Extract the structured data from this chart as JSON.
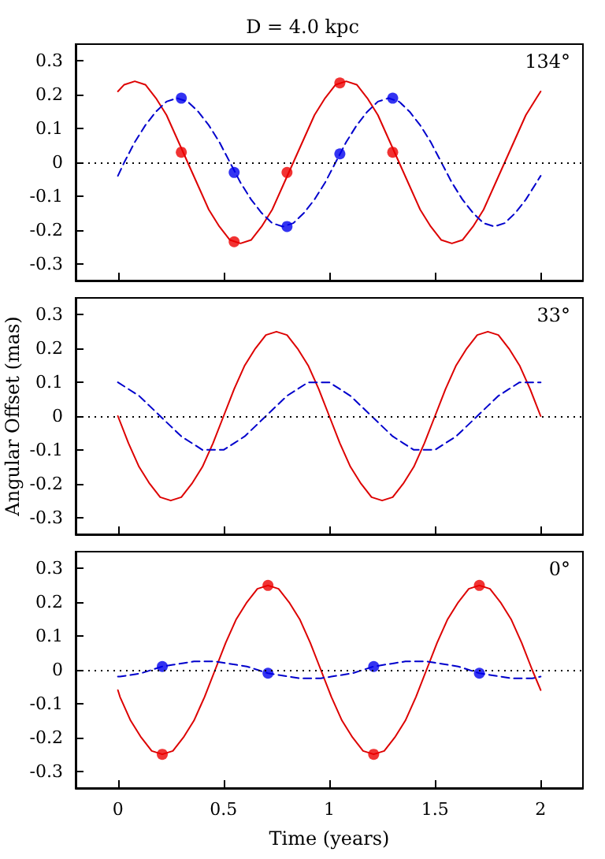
{
  "chart_data": [
    {
      "type": "line",
      "title": "D = 4.0 kpc",
      "annotations": [
        "134°"
      ],
      "xlim": [
        -0.2,
        2.2
      ],
      "xticks": [
        0,
        0.5,
        1,
        1.5,
        2
      ],
      "ylim": [
        -0.35,
        0.35
      ],
      "yticks": [
        -0.3,
        -0.2,
        -0.1,
        0,
        0.1,
        0.2,
        0.3
      ],
      "tick_labels": "y",
      "ref_lines": [
        {
          "axis": "y",
          "value": 0,
          "color": "#000000",
          "line_style": "dotted"
        }
      ],
      "series": [
        {
          "type": "line",
          "color": "#dd0000",
          "line_style": "solid",
          "marker": "none",
          "x": [
            0,
            0.03,
            0.08,
            0.13,
            0.18,
            0.23,
            0.28,
            0.33,
            0.38,
            0.43,
            0.48,
            0.53,
            0.58,
            0.63,
            0.68,
            0.73,
            0.78,
            0.83,
            0.88,
            0.93,
            0.98,
            1.03,
            1.08,
            1.13,
            1.18,
            1.23,
            1.28,
            1.33,
            1.38,
            1.43,
            1.48,
            1.53,
            1.58,
            1.63,
            1.68,
            1.73,
            1.78,
            1.83,
            1.88,
            1.93,
            1.98,
            2
          ],
          "values": [
            0.21,
            0.23,
            0.24,
            0.23,
            0.19,
            0.14,
            0.07,
            0,
            -0.07,
            -0.14,
            -0.19,
            -0.23,
            -0.24,
            -0.23,
            -0.19,
            -0.14,
            -0.07,
            0,
            0.07,
            0.14,
            0.19,
            0.23,
            0.24,
            0.23,
            0.19,
            0.14,
            0.07,
            0,
            -0.07,
            -0.14,
            -0.19,
            -0.23,
            -0.24,
            -0.23,
            -0.19,
            -0.14,
            -0.07,
            0,
            0.07,
            0.14,
            0.19,
            0.21
          ]
        },
        {
          "type": "line",
          "color": "#0000cc",
          "line_style": "dashed",
          "marker": "none",
          "x": [
            0,
            0.03,
            0.08,
            0.13,
            0.18,
            0.23,
            0.28,
            0.33,
            0.38,
            0.43,
            0.48,
            0.53,
            0.58,
            0.63,
            0.68,
            0.73,
            0.78,
            0.83,
            0.88,
            0.93,
            0.98,
            1.03,
            1.08,
            1.13,
            1.18,
            1.23,
            1.28,
            1.33,
            1.38,
            1.43,
            1.48,
            1.53,
            1.58,
            1.63,
            1.68,
            1.73,
            1.78,
            1.83,
            1.88,
            1.93,
            1.98,
            2
          ],
          "values": [
            -0.04,
            0,
            0.06,
            0.11,
            0.15,
            0.18,
            0.19,
            0.18,
            0.15,
            0.11,
            0.06,
            0,
            -0.06,
            -0.11,
            -0.15,
            -0.18,
            -0.19,
            -0.18,
            -0.15,
            -0.11,
            -0.06,
            0,
            0.06,
            0.11,
            0.15,
            0.18,
            0.19,
            0.18,
            0.15,
            0.11,
            0.06,
            0,
            -0.06,
            -0.11,
            -0.15,
            -0.18,
            -0.19,
            -0.18,
            -0.15,
            -0.11,
            -0.06,
            -0.04
          ]
        },
        {
          "type": "scatter",
          "color": "#ee0000",
          "marker": "circle",
          "x": [
            0.3,
            0.55,
            0.8,
            1.05,
            1.3
          ],
          "values": [
            0.03,
            -0.235,
            -0.03,
            0.235,
            0.03
          ]
        },
        {
          "type": "scatter",
          "color": "#0000ee",
          "marker": "circle",
          "x": [
            0.3,
            0.55,
            0.8,
            1.05,
            1.3
          ],
          "values": [
            0.19,
            -0.03,
            -0.19,
            0.025,
            0.19
          ]
        }
      ]
    },
    {
      "type": "line",
      "ylabel": "Angular Offset (mas)",
      "annotations": [
        "33°"
      ],
      "xlim": [
        -0.2,
        2.2
      ],
      "xticks": [
        0,
        0.5,
        1,
        1.5,
        2
      ],
      "ylim": [
        -0.35,
        0.35
      ],
      "yticks": [
        -0.3,
        -0.2,
        -0.1,
        0,
        0.1,
        0.2,
        0.3
      ],
      "tick_labels": "y",
      "ref_lines": [
        {
          "axis": "y",
          "value": 0,
          "color": "#000000",
          "line_style": "dotted"
        }
      ],
      "series": [
        {
          "type": "line",
          "color": "#dd0000",
          "line_style": "solid",
          "marker": "none",
          "x": [
            0,
            0.05,
            0.1,
            0.15,
            0.2,
            0.25,
            0.3,
            0.35,
            0.4,
            0.45,
            0.5,
            0.55,
            0.6,
            0.65,
            0.7,
            0.75,
            0.8,
            0.85,
            0.9,
            0.95,
            1,
            1.05,
            1.1,
            1.15,
            1.2,
            1.25,
            1.3,
            1.35,
            1.4,
            1.45,
            1.5,
            1.55,
            1.6,
            1.65,
            1.7,
            1.75,
            1.8,
            1.85,
            1.9,
            1.95,
            2
          ],
          "values": [
            0,
            -0.08,
            -0.15,
            -0.2,
            -0.24,
            -0.25,
            -0.24,
            -0.2,
            -0.15,
            -0.08,
            0,
            0.08,
            0.15,
            0.2,
            0.24,
            0.25,
            0.24,
            0.2,
            0.15,
            0.08,
            0,
            -0.08,
            -0.15,
            -0.2,
            -0.24,
            -0.25,
            -0.24,
            -0.2,
            -0.15,
            -0.08,
            0,
            0.08,
            0.15,
            0.2,
            0.24,
            0.25,
            0.24,
            0.2,
            0.15,
            0.08,
            0
          ]
        },
        {
          "type": "line",
          "color": "#0000cc",
          "line_style": "dashed",
          "marker": "none",
          "x": [
            0,
            0.05,
            0.1,
            0.15,
            0.2,
            0.25,
            0.3,
            0.35,
            0.4,
            0.45,
            0.5,
            0.55,
            0.6,
            0.65,
            0.7,
            0.75,
            0.8,
            0.85,
            0.9,
            0.95,
            1,
            1.05,
            1.1,
            1.15,
            1.2,
            1.25,
            1.3,
            1.35,
            1.4,
            1.45,
            1.5,
            1.55,
            1.6,
            1.65,
            1.7,
            1.75,
            1.8,
            1.85,
            1.9,
            1.95,
            2
          ],
          "values": [
            0.1,
            0.08,
            0.06,
            0.03,
            0,
            -0.03,
            -0.06,
            -0.08,
            -0.1,
            -0.1,
            -0.1,
            -0.08,
            -0.06,
            -0.03,
            0,
            0.03,
            0.06,
            0.08,
            0.1,
            0.1,
            0.1,
            0.08,
            0.06,
            0.03,
            0,
            -0.03,
            -0.06,
            -0.08,
            -0.1,
            -0.1,
            -0.1,
            -0.08,
            -0.06,
            -0.03,
            0,
            0.03,
            0.06,
            0.08,
            0.1,
            0.1,
            0.1
          ]
        }
      ]
    },
    {
      "type": "line",
      "xlabel": "Time (years)",
      "annotations": [
        "0°"
      ],
      "xlim": [
        -0.2,
        2.2
      ],
      "xticks": [
        0,
        0.5,
        1,
        1.5,
        2
      ],
      "ylim": [
        -0.35,
        0.35
      ],
      "yticks": [
        -0.3,
        -0.2,
        -0.1,
        0,
        0.1,
        0.2,
        0.3
      ],
      "ref_lines": [
        {
          "axis": "y",
          "value": 0,
          "color": "#000000",
          "line_style": "dotted"
        }
      ],
      "series": [
        {
          "type": "line",
          "color": "#dd0000",
          "line_style": "solid",
          "marker": "none",
          "x": [
            0,
            0.01,
            0.06,
            0.11,
            0.16,
            0.21,
            0.26,
            0.31,
            0.36,
            0.41,
            0.46,
            0.51,
            0.56,
            0.61,
            0.66,
            0.71,
            0.76,
            0.81,
            0.86,
            0.91,
            0.96,
            1.01,
            1.06,
            1.11,
            1.16,
            1.21,
            1.26,
            1.31,
            1.36,
            1.41,
            1.46,
            1.51,
            1.56,
            1.61,
            1.66,
            1.71,
            1.76,
            1.81,
            1.86,
            1.91,
            1.96,
            2
          ],
          "values": [
            -0.06,
            -0.08,
            -0.15,
            -0.2,
            -0.24,
            -0.25,
            -0.24,
            -0.2,
            -0.15,
            -0.08,
            0,
            0.08,
            0.15,
            0.2,
            0.24,
            0.25,
            0.24,
            0.2,
            0.15,
            0.08,
            0,
            -0.08,
            -0.15,
            -0.2,
            -0.24,
            -0.25,
            -0.24,
            -0.2,
            -0.15,
            -0.08,
            0,
            0.08,
            0.15,
            0.2,
            0.24,
            0.25,
            0.24,
            0.2,
            0.15,
            0.08,
            0,
            -0.06
          ]
        },
        {
          "type": "line",
          "color": "#0000cc",
          "line_style": "dashed",
          "marker": "none",
          "x": [
            0,
            0.01,
            0.06,
            0.11,
            0.16,
            0.21,
            0.26,
            0.31,
            0.36,
            0.41,
            0.46,
            0.51,
            0.56,
            0.61,
            0.66,
            0.71,
            0.76,
            0.81,
            0.86,
            0.91,
            0.96,
            1.01,
            1.06,
            1.11,
            1.16,
            1.21,
            1.26,
            1.31,
            1.36,
            1.41,
            1.46,
            1.51,
            1.56,
            1.61,
            1.66,
            1.71,
            1.76,
            1.81,
            1.86,
            1.91,
            1.96,
            2
          ],
          "values": [
            -0.02,
            -0.02,
            -0.015,
            -0.01,
            0,
            0.01,
            0.015,
            0.02,
            0.025,
            0.025,
            0.025,
            0.02,
            0.015,
            0.01,
            0,
            -0.01,
            -0.015,
            -0.02,
            -0.025,
            -0.025,
            -0.025,
            -0.02,
            -0.015,
            -0.01,
            0,
            0.01,
            0.015,
            0.02,
            0.025,
            0.025,
            0.025,
            0.02,
            0.015,
            0.01,
            0,
            -0.01,
            -0.015,
            -0.02,
            -0.025,
            -0.025,
            -0.025,
            -0.02
          ]
        },
        {
          "type": "scatter",
          "color": "#ee0000",
          "marker": "circle",
          "x": [
            0.21,
            0.71,
            1.21,
            1.71
          ],
          "values": [
            -0.25,
            0.25,
            -0.25,
            0.25
          ]
        },
        {
          "type": "scatter",
          "color": "#0000ee",
          "marker": "circle",
          "x": [
            0.21,
            0.71,
            1.21,
            1.71
          ],
          "values": [
            0.01,
            -0.01,
            0.01,
            -0.01
          ]
        }
      ]
    }
  ]
}
